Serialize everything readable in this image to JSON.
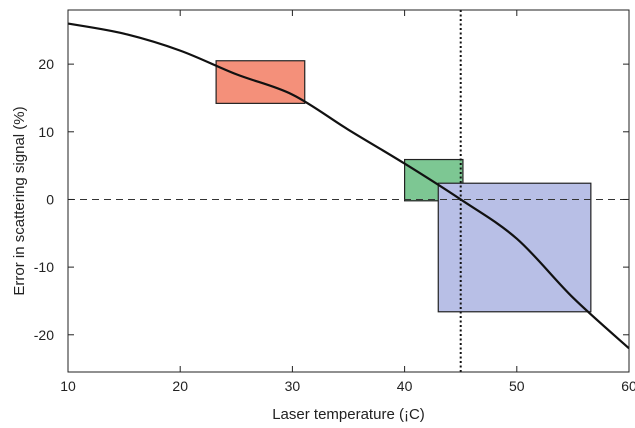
{
  "chart_data": {
    "type": "line",
    "title": "",
    "xlabel": "Laser temperature (¡C)",
    "ylabel": "Error in scattering signal (%)",
    "xlim": [
      10,
      60
    ],
    "ylim": [
      -25.5,
      28
    ],
    "xticks": [
      10,
      20,
      30,
      40,
      50,
      60
    ],
    "yticks": [
      20,
      10,
      0,
      -10,
      -20
    ],
    "grid": false,
    "legend": "none",
    "series": [
      {
        "x": [
          10,
          15,
          20,
          25,
          30,
          35,
          40,
          45,
          50,
          55,
          60
        ],
        "y": [
          26,
          24.5,
          22,
          18.5,
          15.5,
          10.3,
          5.3,
          0,
          -5.8,
          -14.5,
          -22
        ],
        "color": "#111111"
      }
    ],
    "reference_lines": {
      "horizontal_dashed_y": 0,
      "vertical_dotted_x": 45
    },
    "boxes": [
      {
        "x0": 23.2,
        "x1": 31.1,
        "y0": 14.2,
        "y1": 20.5,
        "fill": "#f4907a"
      },
      {
        "x0": 40,
        "x1": 45.2,
        "y0": -0.2,
        "y1": 5.9,
        "fill": "#7dc793"
      },
      {
        "x0": 43,
        "x1": 56.6,
        "y0": -16.6,
        "y1": 2.4,
        "fill": "#b8bfe6"
      }
    ]
  }
}
